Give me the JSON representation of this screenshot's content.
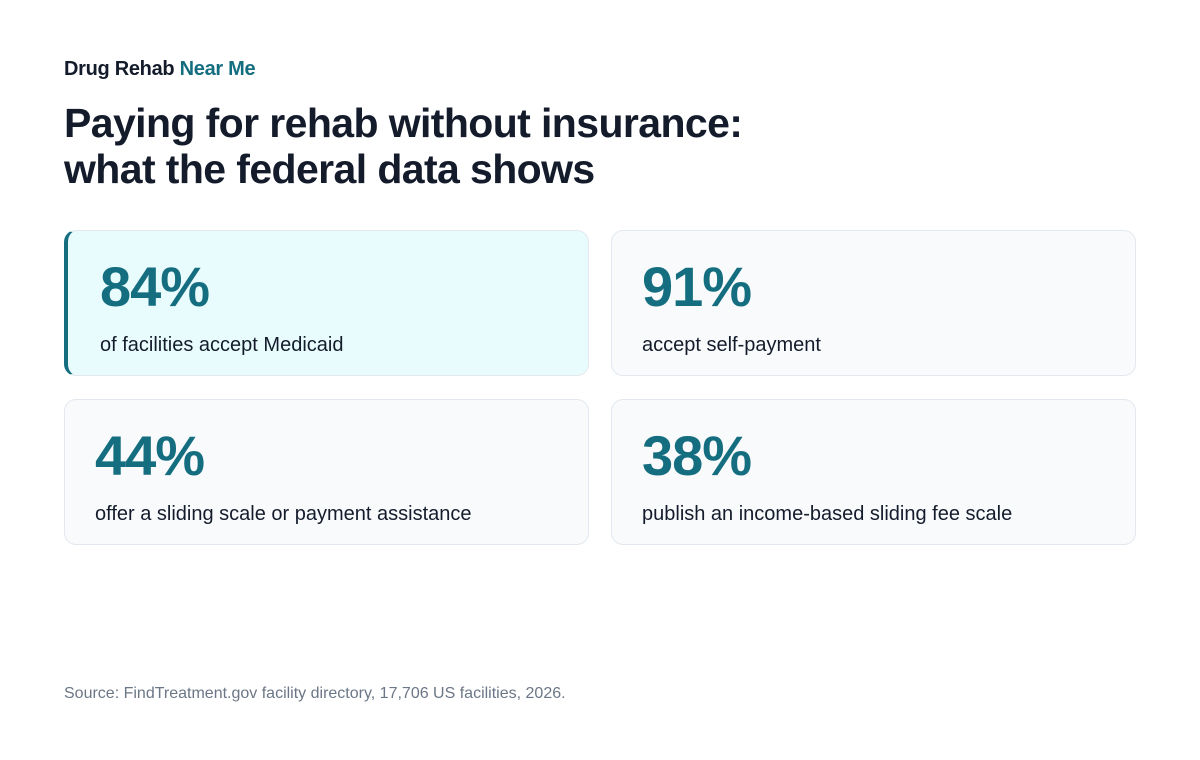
{
  "brand": {
    "main": "Drug Rehab",
    "accent": "Near Me"
  },
  "title": {
    "line1": "Paying for rehab without insurance:",
    "line2": "what the federal data shows"
  },
  "stats": [
    {
      "value": "84%",
      "label": "of facilities accept Medicaid",
      "highlighted": true
    },
    {
      "value": "91%",
      "label": "accept self-payment",
      "highlighted": false
    },
    {
      "value": "44%",
      "label": "offer a sliding scale or payment assistance",
      "highlighted": false
    },
    {
      "value": "38%",
      "label": "publish an income-based sliding fee scale",
      "highlighted": false
    }
  ],
  "source": "Source: FindTreatment.gov facility directory, 17,706 US facilities, 2026.",
  "colors": {
    "accent": "#156e80",
    "text": "#141c2c",
    "highlight_bg": "#e8fcfd",
    "card_bg": "#f8fafc",
    "muted": "#6b7686"
  }
}
